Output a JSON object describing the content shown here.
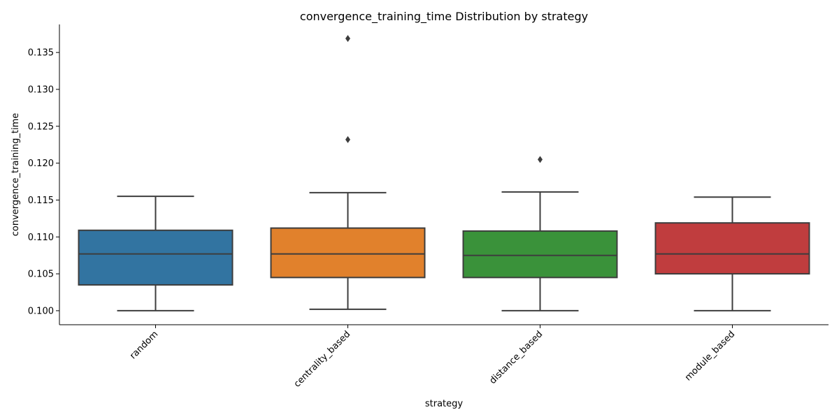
{
  "chart_data": {
    "type": "box",
    "title": "convergence_training_time Distribution by strategy",
    "xlabel": "strategy",
    "ylabel": "convergence_training_time",
    "ylim": [
      0.0981,
      0.1388
    ],
    "yticks": [
      "0.100",
      "0.105",
      "0.110",
      "0.115",
      "0.120",
      "0.125",
      "0.130",
      "0.135"
    ],
    "ytick_values": [
      0.1,
      0.105,
      0.11,
      0.115,
      0.12,
      0.125,
      0.13,
      0.135
    ],
    "grid": false,
    "categories": [
      "random",
      "centrality_based",
      "distance_based",
      "module_based"
    ],
    "boxes": [
      {
        "category": "random",
        "color": "#3274a1",
        "whisker_low": 0.1,
        "q1": 0.1035,
        "median": 0.1077,
        "q3": 0.1109,
        "whisker_high": 0.1155,
        "outliers": []
      },
      {
        "category": "centrality_based",
        "color": "#e1812c",
        "whisker_low": 0.1002,
        "q1": 0.1045,
        "median": 0.1077,
        "q3": 0.1112,
        "whisker_high": 0.116,
        "outliers": [
          0.1232,
          0.1369
        ]
      },
      {
        "category": "distance_based",
        "color": "#3a923a",
        "whisker_low": 0.1,
        "q1": 0.1045,
        "median": 0.1075,
        "q3": 0.1108,
        "whisker_high": 0.1161,
        "outliers": [
          0.1205
        ]
      },
      {
        "category": "module_based",
        "color": "#c03d3e",
        "whisker_low": 0.1,
        "q1": 0.105,
        "median": 0.1077,
        "q3": 0.1119,
        "whisker_high": 0.1154,
        "outliers": []
      }
    ]
  }
}
